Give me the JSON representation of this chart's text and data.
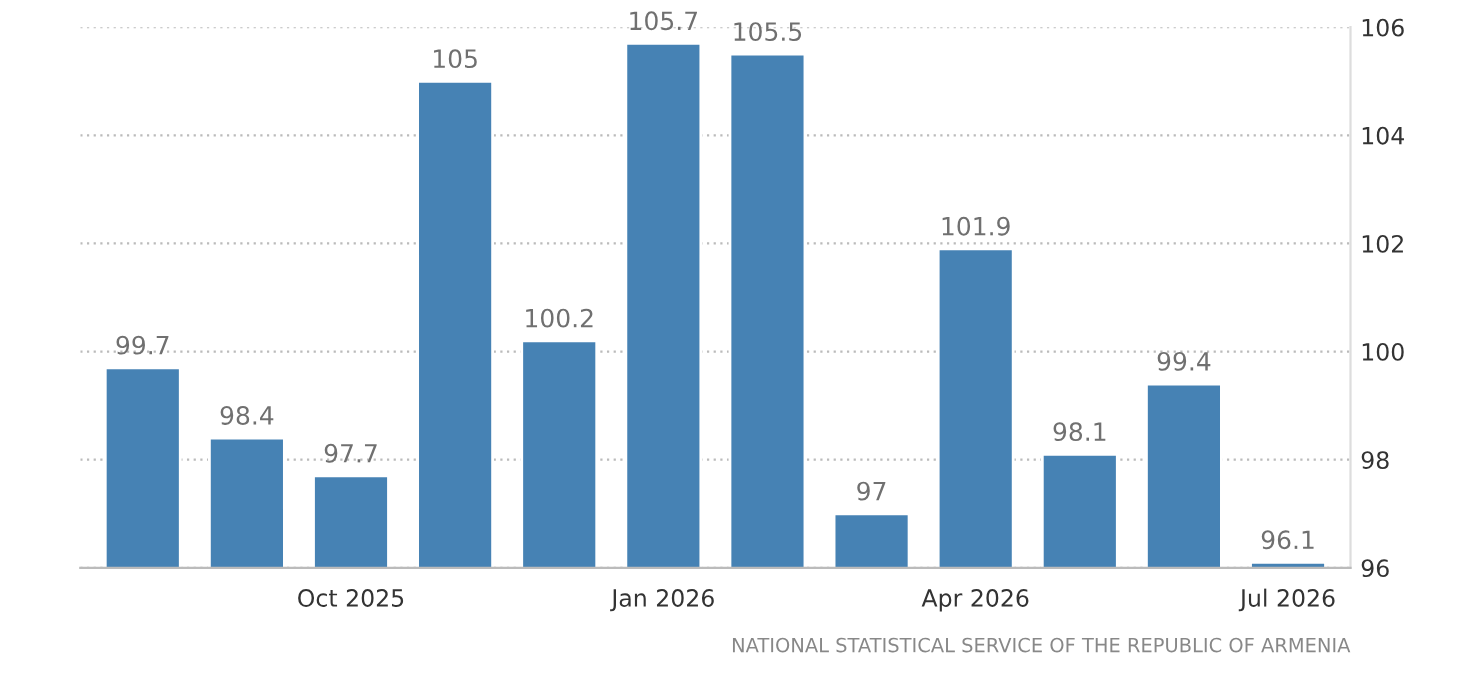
{
  "chart_data": {
    "type": "bar",
    "categories": [
      null,
      null,
      "Oct 2025",
      null,
      null,
      "Jan 2026",
      null,
      null,
      "Apr 2026",
      null,
      null,
      "Jul 2026"
    ],
    "values": [
      99.7,
      98.4,
      97.7,
      105,
      100.2,
      105.7,
      105.5,
      97,
      101.9,
      98.1,
      99.4,
      96.1
    ],
    "color": "#4682b4",
    "ylim": [
      96,
      106
    ],
    "yticks": [
      96,
      98,
      100,
      102,
      104,
      106
    ],
    "grid": "y",
    "data_labels": true,
    "legend": false,
    "annotations": [
      "NATIONAL STATISTICAL SERVICE OF THE REPUBLIC OF ARMENIA"
    ]
  }
}
